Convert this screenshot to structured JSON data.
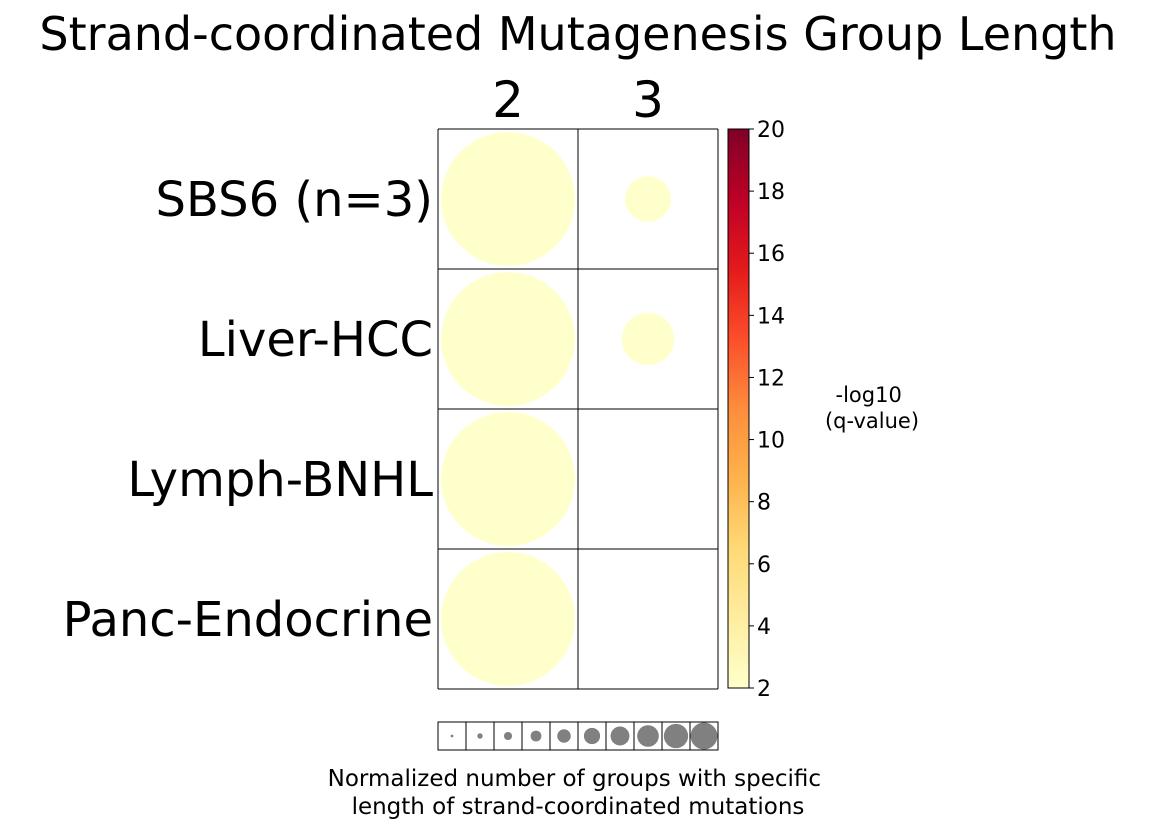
{
  "chart_data": {
    "type": "bubble-heatmap",
    "title": "Strand-coordinated Mutagenesis Group Length",
    "columns": [
      "2",
      "3"
    ],
    "rows": [
      "SBS6 (n=3)",
      "Liver-HCC",
      "Lymph-BNHL",
      "Panc-Endocrine"
    ],
    "cells": [
      {
        "row": "SBS6 (n=3)",
        "col": "2",
        "size": 1.0,
        "neglog10_q": 2
      },
      {
        "row": "SBS6 (n=3)",
        "col": "3",
        "size": 0.34,
        "neglog10_q": 2
      },
      {
        "row": "Liver-HCC",
        "col": "2",
        "size": 1.0,
        "neglog10_q": 2
      },
      {
        "row": "Liver-HCC",
        "col": "3",
        "size": 0.39,
        "neglog10_q": 2
      },
      {
        "row": "Lymph-BNHL",
        "col": "2",
        "size": 1.0,
        "neglog10_q": 2
      },
      {
        "row": "Panc-Endocrine",
        "col": "2",
        "size": 1.0,
        "neglog10_q": 2
      }
    ],
    "colorbar": {
      "label_lines": [
        "-log10",
        "(q-value)"
      ],
      "min": 2,
      "max": 20,
      "ticks": [
        "2",
        "4",
        "6",
        "8",
        "10",
        "12",
        "14",
        "16",
        "18",
        "20"
      ],
      "colormap": [
        "#ffffcc",
        "#ffeda0",
        "#fed976",
        "#feb24c",
        "#fd8d3c",
        "#fc4e2a",
        "#e31a1c",
        "#bd0026",
        "#800026"
      ]
    },
    "size_legend": {
      "steps": [
        0.1,
        0.2,
        0.3,
        0.4,
        0.5,
        0.6,
        0.7,
        0.8,
        0.9,
        1.0
      ],
      "color": "#808080",
      "label_lines": [
        "Normalized number of groups with specific",
        "length of strand-coordinated mutations"
      ]
    }
  }
}
